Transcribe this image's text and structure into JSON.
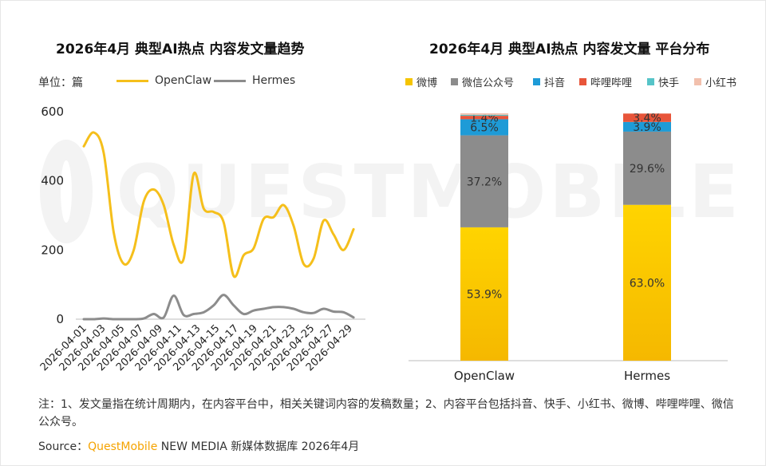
{
  "watermark": {
    "text": "QUESTMOBILE"
  },
  "left_chart": {
    "title": "2026年4月 典型AI热点 内容发文量趋势",
    "unit": "单位：篇"
  },
  "right_chart": {
    "title": "2026年4月 典型AI热点 内容发文量 平台分布"
  },
  "footer": {
    "note": "注：1、发文量指在统计周期内，在内容平台中，相关关键词内容的发稿数量；2、内容平台包括抖音、快手、小红书、微博、哔哩哔哩、微信公众号。",
    "source_prefix": "Source：",
    "source_brand": "QuestMobile",
    "source_rest": " NEW MEDIA 新媒体数据库 2026年4月"
  },
  "chart_data": [
    {
      "type": "line",
      "title": "2026年4月 典型AI热点 内容发文量趋势",
      "ylabel": "单位：篇",
      "ylim": [
        0,
        600
      ],
      "yticks": [
        0,
        200,
        400,
        600
      ],
      "grid": false,
      "legend_position": "top",
      "x": [
        "2026-04-01",
        "2026-04-02",
        "2026-04-03",
        "2026-04-04",
        "2026-04-05",
        "2026-04-06",
        "2026-04-07",
        "2026-04-08",
        "2026-04-09",
        "2026-04-10",
        "2026-04-11",
        "2026-04-12",
        "2026-04-13",
        "2026-04-14",
        "2026-04-15",
        "2026-04-16",
        "2026-04-17",
        "2026-04-18",
        "2026-04-19",
        "2026-04-20",
        "2026-04-21",
        "2026-04-22",
        "2026-04-23",
        "2026-04-24",
        "2026-04-25",
        "2026-04-26",
        "2026-04-27",
        "2026-04-28",
        "2026-04-29",
        "2026-04-30"
      ],
      "xtick_labels": [
        "2026-04-01",
        "2026-04-03",
        "2026-04-05",
        "2026-04-07",
        "2026-04-09",
        "2026-04-11",
        "2026-04-13",
        "2026-04-15",
        "2026-04-17",
        "2026-04-19",
        "2026-04-21",
        "2026-04-23",
        "2026-04-25",
        "2026-04-27",
        "2026-04-29"
      ],
      "series": [
        {
          "name": "OpenClaw",
          "color": "#f5bf1b",
          "values": [
            500,
            540,
            480,
            250,
            160,
            200,
            340,
            375,
            330,
            215,
            175,
            420,
            320,
            310,
            280,
            125,
            185,
            205,
            290,
            295,
            330,
            270,
            160,
            175,
            285,
            245,
            200,
            260,
            0,
            0
          ]
        },
        {
          "name": "Hermes",
          "color": "#8c8c8c",
          "values": [
            0,
            0,
            2,
            0,
            0,
            0,
            2,
            15,
            5,
            68,
            12,
            15,
            20,
            40,
            70,
            40,
            15,
            25,
            30,
            35,
            35,
            30,
            20,
            18,
            30,
            22,
            20,
            5,
            0,
            0
          ]
        }
      ]
    },
    {
      "type": "bar",
      "stacked": true,
      "title": "2026年4月 典型AI热点 内容发文量 平台分布",
      "categories": [
        "OpenClaw",
        "Hermes"
      ],
      "ylim": [
        0,
        100
      ],
      "legend_position": "top",
      "series": [
        {
          "name": "微博",
          "color": "#f5c400",
          "values": [
            53.9,
            63.0
          ],
          "labels": [
            "53.9%",
            "63.0%"
          ]
        },
        {
          "name": "微信公众号",
          "color": "#8c8c8c",
          "values": [
            37.2,
            29.6
          ],
          "labels": [
            "37.2%",
            "29.6%"
          ]
        },
        {
          "name": "抖音",
          "color": "#1e9bd7",
          "values": [
            6.5,
            3.9
          ],
          "labels": [
            "6.5%",
            "3.9%"
          ]
        },
        {
          "name": "哔哩哔哩",
          "color": "#e8553a",
          "values": [
            1.4,
            3.4
          ],
          "labels": [
            "1.4%",
            "3.4%"
          ]
        },
        {
          "name": "快手",
          "color": "#56c4c8",
          "values": [
            0.4,
            0.0
          ],
          "labels": [
            "",
            ""
          ]
        },
        {
          "name": "小红书",
          "color": "#f2c0ad",
          "values": [
            0.6,
            0.1
          ],
          "labels": [
            "",
            ""
          ]
        }
      ]
    }
  ]
}
